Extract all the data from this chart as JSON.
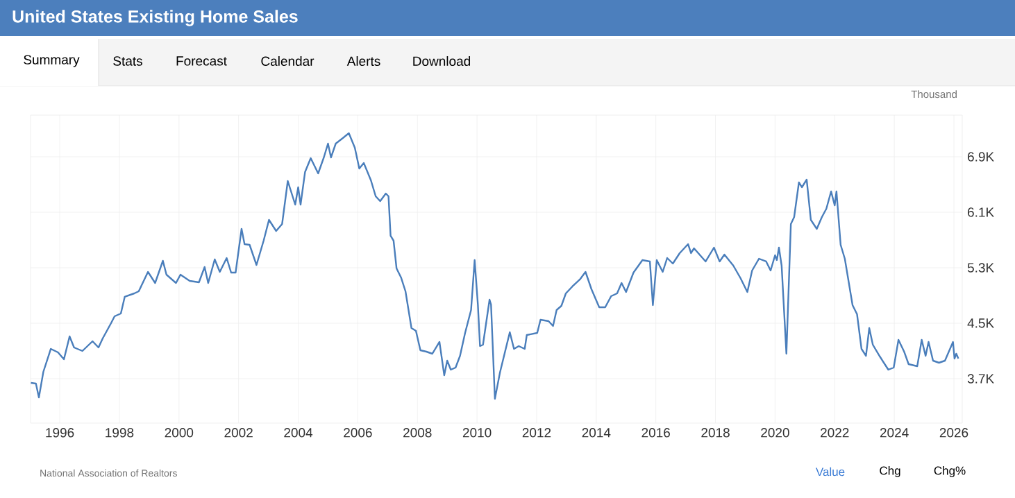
{
  "chart_data": {
    "type": "line",
    "title": "United States Existing Home Sales",
    "ylabel": "Thousand",
    "annotations": [
      "National Association of Realtors",
      "Summary",
      "Stats",
      "Forecast",
      "Calendar",
      "Alerts",
      "Download",
      "Value",
      "Chg",
      "Chg%"
    ],
    "x": [
      1995.03,
      1995.2,
      1995.3,
      1995.45,
      1995.7,
      1995.94,
      1996.14,
      1996.33,
      1996.48,
      1996.76,
      1997.1,
      1997.3,
      1997.44,
      1997.72,
      1997.84,
      1998.05,
      1998.18,
      1998.5,
      1998.65,
      1998.96,
      1999.2,
      1999.46,
      1999.58,
      1999.9,
      2000.05,
      2000.36,
      2000.67,
      2000.86,
      2000.98,
      2001.2,
      2001.37,
      2001.6,
      2001.75,
      2001.9,
      2002.1,
      2002.2,
      2002.37,
      2002.6,
      2002.84,
      2003.02,
      2003.26,
      2003.46,
      2003.65,
      2003.9,
      2004.0,
      2004.08,
      2004.23,
      2004.42,
      2004.67,
      2004.86,
      2005.0,
      2005.1,
      2005.26,
      2005.5,
      2005.7,
      2005.9,
      2006.05,
      2006.2,
      2006.44,
      2006.6,
      2006.75,
      2006.94,
      2007.03,
      2007.1,
      2007.2,
      2007.3,
      2007.45,
      2007.6,
      2007.8,
      2007.95,
      2008.1,
      2008.3,
      2008.5,
      2008.74,
      2008.9,
      2009.0,
      2009.12,
      2009.28,
      2009.43,
      2009.6,
      2009.8,
      2009.92,
      2010.03,
      2010.1,
      2010.2,
      2010.42,
      2010.47,
      2010.6,
      2010.77,
      2011.1,
      2011.24,
      2011.4,
      2011.6,
      2011.67,
      2012.02,
      2012.13,
      2012.4,
      2012.55,
      2012.67,
      2012.83,
      2012.98,
      2013.2,
      2013.45,
      2013.64,
      2013.84,
      2014.1,
      2014.3,
      2014.5,
      2014.7,
      2014.85,
      2015.0,
      2015.25,
      2015.55,
      2015.8,
      2015.9,
      2016.03,
      2016.23,
      2016.38,
      2016.57,
      2016.8,
      2017.08,
      2017.18,
      2017.28,
      2017.67,
      2017.95,
      2018.14,
      2018.3,
      2018.6,
      2018.84,
      2019.07,
      2019.23,
      2019.46,
      2019.7,
      2019.85,
      2020.0,
      2020.06,
      2020.13,
      2020.22,
      2020.38,
      2020.53,
      2020.64,
      2020.8,
      2020.9,
      2021.06,
      2021.2,
      2021.4,
      2021.57,
      2021.72,
      2021.88,
      2022.0,
      2022.06,
      2022.2,
      2022.34,
      2022.6,
      2022.75,
      2022.9,
      2023.05,
      2023.16,
      2023.28,
      2023.5,
      2023.8,
      2023.98,
      2024.14,
      2024.33,
      2024.48,
      2024.77,
      2024.92,
      2025.05,
      2025.15,
      2025.3,
      2025.5,
      2025.7,
      2025.97,
      2026.02,
      2026.08,
      2026.15
    ],
    "series": [
      {
        "color": "#4a7ebb",
        "values": [
          3640,
          3630,
          3430,
          3800,
          4130,
          4080,
          3980,
          4310,
          4150,
          4100,
          4240,
          4150,
          4280,
          4500,
          4600,
          4640,
          4880,
          4930,
          4960,
          5240,
          5080,
          5400,
          5200,
          5080,
          5200,
          5110,
          5090,
          5310,
          5080,
          5420,
          5240,
          5440,
          5230,
          5230,
          5860,
          5640,
          5630,
          5340,
          5690,
          5990,
          5830,
          5930,
          6550,
          6210,
          6460,
          6210,
          6680,
          6880,
          6660,
          6890,
          7090,
          6890,
          7090,
          7170,
          7240,
          7030,
          6730,
          6810,
          6560,
          6330,
          6260,
          6370,
          6330,
          5760,
          5690,
          5290,
          5160,
          4960,
          4430,
          4390,
          4110,
          4090,
          4060,
          4230,
          3750,
          3960,
          3830,
          3860,
          4030,
          4360,
          4690,
          5410,
          4760,
          4170,
          4190,
          4840,
          4770,
          3410,
          3790,
          4370,
          4130,
          4170,
          4130,
          4330,
          4360,
          4550,
          4530,
          4460,
          4690,
          4750,
          4930,
          5030,
          5130,
          5240,
          4990,
          4730,
          4730,
          4890,
          4930,
          5080,
          4950,
          5230,
          5410,
          5390,
          4760,
          5410,
          5240,
          5440,
          5360,
          5510,
          5640,
          5510,
          5580,
          5390,
          5590,
          5390,
          5490,
          5330,
          5150,
          4950,
          5260,
          5430,
          5390,
          5260,
          5480,
          5410,
          5590,
          5330,
          4060,
          5930,
          6030,
          6530,
          6460,
          6570,
          5990,
          5860,
          6030,
          6150,
          6400,
          6200,
          6400,
          5630,
          5430,
          4760,
          4630,
          4130,
          4030,
          4430,
          4190,
          4030,
          3830,
          3860,
          4260,
          4090,
          3910,
          3880,
          4260,
          4030,
          4230,
          3960,
          3930,
          3960,
          4230,
          3990,
          4060,
          3990
        ]
      }
    ],
    "xlim": [
      1995.02,
      2026.28
    ],
    "ylim": [
      3060,
      7500
    ],
    "xticks": [
      1996,
      1998,
      2000,
      2002,
      2004,
      2006,
      2008,
      2010,
      2012,
      2014,
      2016,
      2018,
      2020,
      2022,
      2024,
      2026
    ],
    "yticks": [
      {
        "value": 3700,
        "label": "3.7K"
      },
      {
        "value": 4500,
        "label": "4.5K"
      },
      {
        "value": 5300,
        "label": "5.3K"
      },
      {
        "value": 6100,
        "label": "6.1K"
      },
      {
        "value": 6900,
        "label": "6.9K"
      }
    ],
    "grid": true,
    "marker": "none",
    "line_style": "solid"
  }
}
